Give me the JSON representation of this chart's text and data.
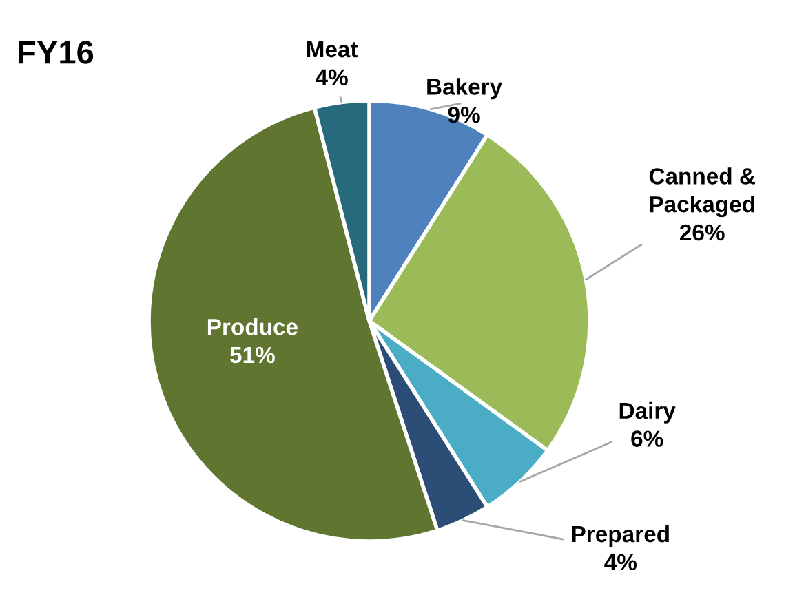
{
  "chart_data": {
    "type": "pie",
    "title": "FY16",
    "categories": [
      "Bakery",
      "Canned & Packaged",
      "Dairy",
      "Prepared",
      "Produce",
      "Meat"
    ],
    "values": [
      9,
      26,
      6,
      4,
      51,
      4
    ],
    "value_labels": [
      "9%",
      "26%",
      "6%",
      "4%",
      "51%",
      "4%"
    ],
    "colors": [
      "#4f81bd",
      "#9bbb59",
      "#4bacc6",
      "#2c4d75",
      "#5f7530",
      "#276a7c"
    ],
    "legend": false
  }
}
